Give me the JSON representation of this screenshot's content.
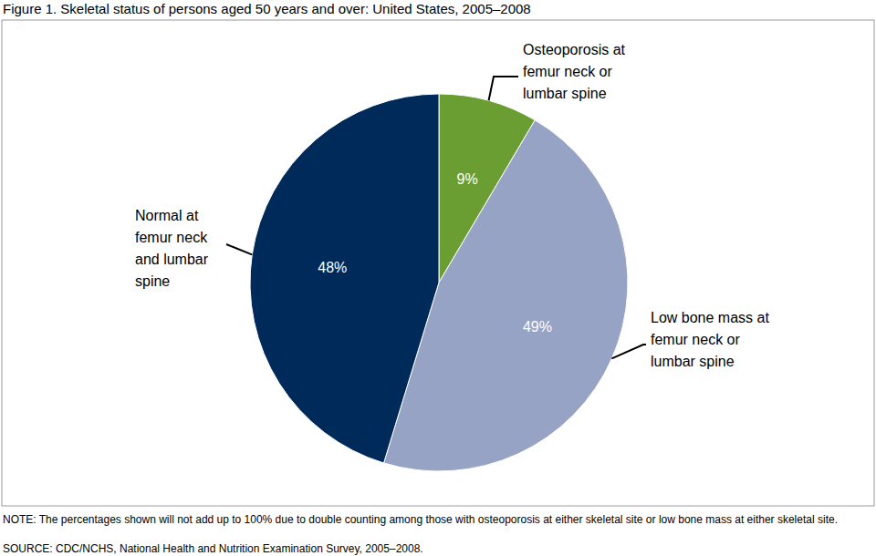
{
  "chart_data": {
    "type": "pie",
    "title": "Figure 1. Skeletal status of persons aged 50 years and over: United States, 2005–2008",
    "categories": [
      "Osteoporosis at femur neck or lumbar spine",
      "Low bone mass at femur neck or lumbar spine",
      "Normal at femur neck and lumbar spine"
    ],
    "values": [
      9,
      49,
      48
    ],
    "value_labels": [
      "9%",
      "49%",
      "48%"
    ],
    "colors": [
      "#6a9e32",
      "#96a3c4",
      "#002a5a"
    ],
    "data_labels": true,
    "note": "NOTE: The percentages shown will not add up to 100% due to double counting among those with osteoporosis at either skeletal site or low bone mass at either skeletal site.",
    "source": "SOURCE: CDC/NCHS, National Health and Nutrition Examination Survey, 2005–2008."
  }
}
